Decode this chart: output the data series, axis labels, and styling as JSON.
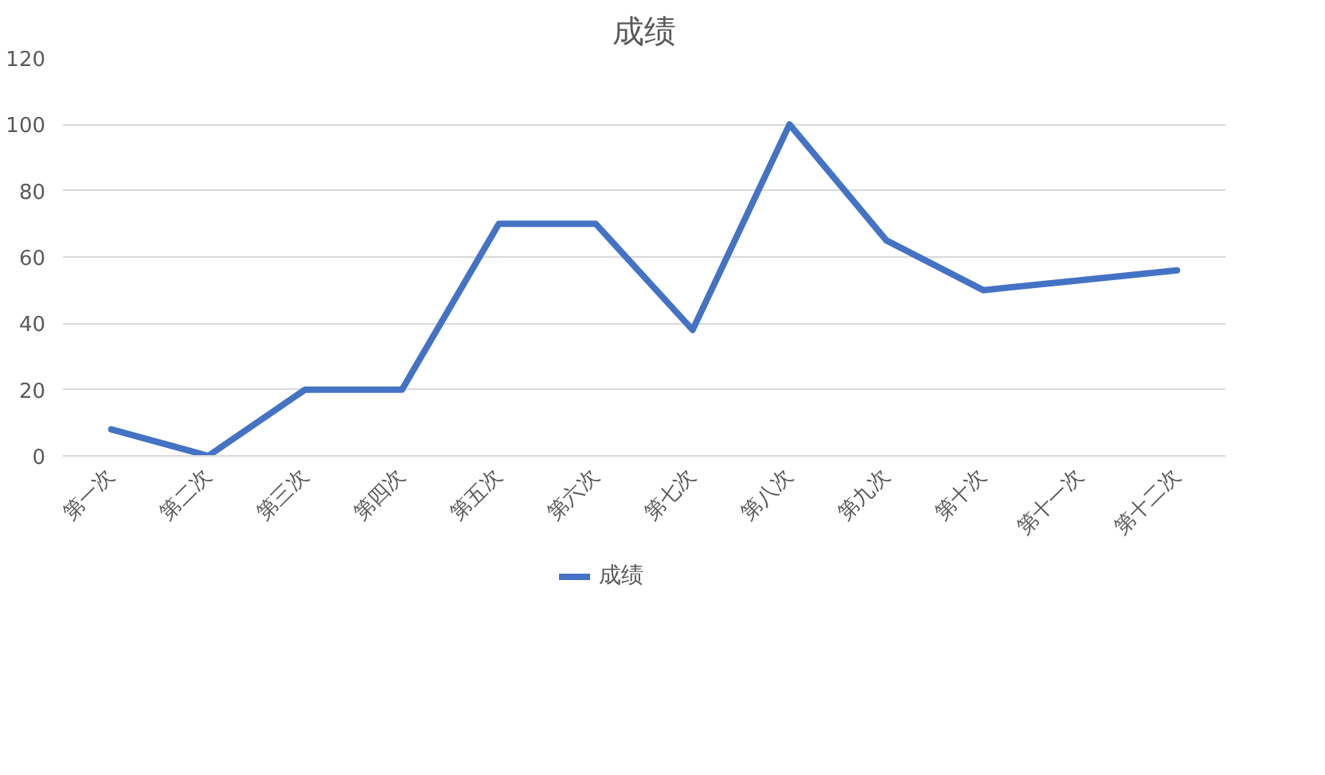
{
  "chart_data": {
    "type": "line",
    "title": "成绩",
    "categories": [
      "第一次",
      "第二次",
      "第三次",
      "第四次",
      "第五次",
      "第六次",
      "第七次",
      "第八次",
      "第九次",
      "第十次",
      "第十一次",
      "第十二次"
    ],
    "series": [
      {
        "name": "成绩",
        "color": "#4472c4",
        "values": [
          8,
          0,
          20,
          20,
          70,
          70,
          38,
          100,
          65,
          50,
          53,
          56
        ]
      }
    ],
    "ylim": [
      0,
      120
    ],
    "yticks": [
      0,
      20,
      40,
      60,
      80,
      100,
      120
    ],
    "grid": "y",
    "legend": "bottom"
  }
}
